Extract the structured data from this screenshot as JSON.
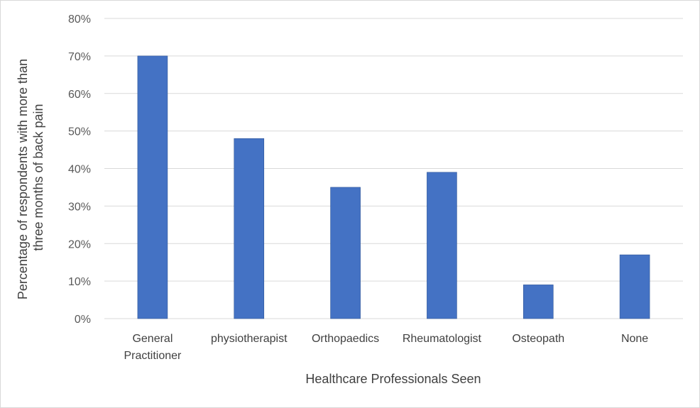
{
  "chart_data": {
    "type": "bar",
    "categories": [
      [
        "General",
        "Practitioner"
      ],
      [
        "physiotherapist"
      ],
      [
        "Orthopaedics"
      ],
      [
        "Rheumatologist"
      ],
      [
        "Osteopath"
      ],
      [
        "None"
      ]
    ],
    "values": [
      70,
      48,
      35,
      39,
      9,
      17
    ],
    "xlabel": "Healthcare Professionals Seen",
    "ylabel": [
      "Percentage of respondents with more than",
      "three months of back pain"
    ],
    "ylim": [
      0,
      80
    ],
    "yticks": [
      0,
      10,
      20,
      30,
      40,
      50,
      60,
      70,
      80
    ],
    "tick_suffix": "%",
    "grid": true,
    "bar_color": "#4472C4",
    "grid_color": "#d9d9d9"
  }
}
